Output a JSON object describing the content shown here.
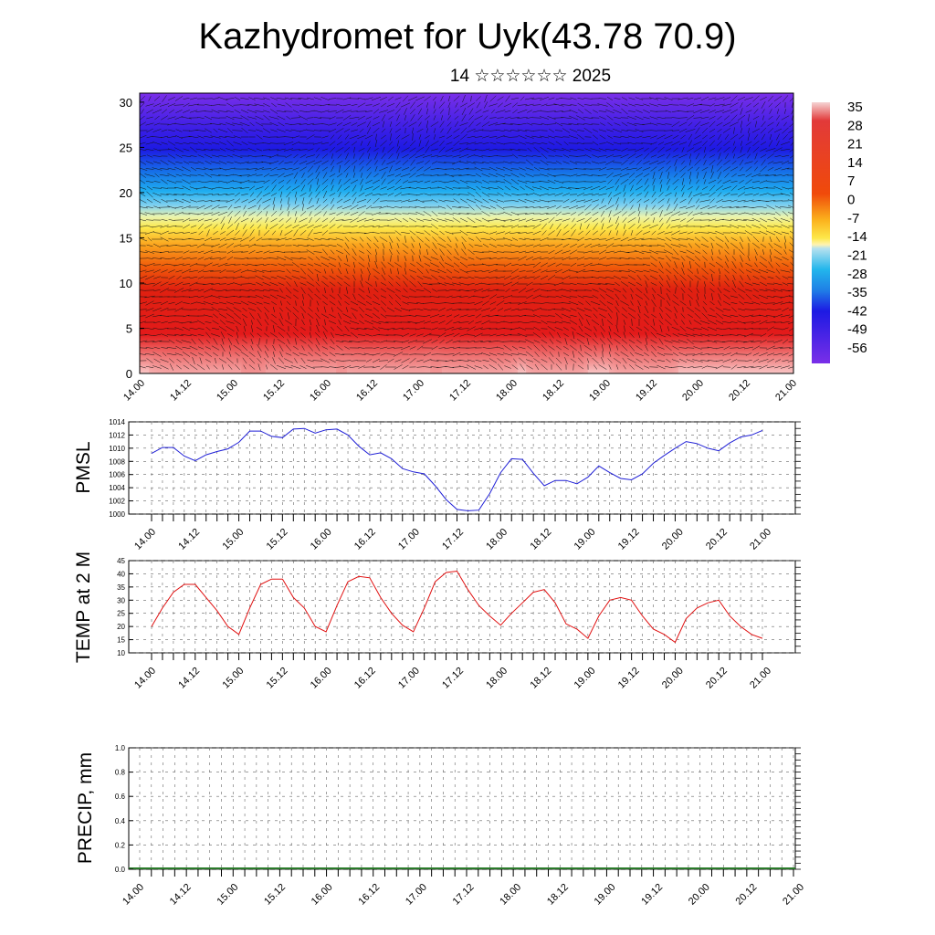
{
  "title": "Kazhydromet for Uyk(43.78 70.9)",
  "subtitle": "14 ☆☆☆☆☆☆ 2025",
  "time_labels": [
    "14.00",
    "14.12",
    "15.00",
    "15.12",
    "16.00",
    "16.12",
    "17.00",
    "17.12",
    "18.00",
    "18.12",
    "19.00",
    "19.12",
    "20.00",
    "20.12",
    "21.00"
  ],
  "colors": {
    "pmsl_line": "#1f1fd6",
    "temp_line": "#e01010",
    "grid": "#555555",
    "axis": "#000000"
  },
  "chart_data": [
    {
      "type": "heatmap",
      "title": "",
      "xlabel": "",
      "ylabel": "",
      "x_ticks": [
        "14.00",
        "14.12",
        "15.00",
        "15.12",
        "16.00",
        "16.12",
        "17.00",
        "17.12",
        "18.00",
        "18.12",
        "19.00",
        "19.12",
        "20.00",
        "20.12",
        "21.00"
      ],
      "y_ticks": [
        0,
        5,
        10,
        15,
        20,
        25,
        30
      ],
      "ylim": [
        0,
        31
      ],
      "colorbar": {
        "labels": [
          "35",
          "28",
          "21",
          "14",
          "7",
          "0",
          "-7",
          "-14",
          "-21",
          "-28",
          "-35",
          "-42",
          "-49",
          "-56"
        ],
        "colors": [
          "#f2c0c0",
          "#e23a3a",
          "#e31a1a",
          "#f04a0a",
          "#f57f0a",
          "#fbb11c",
          "#fde84a",
          "#b6e1ef",
          "#22b6ec",
          "#1f7fe6",
          "#1550e6",
          "#1d1ae3",
          "#4a1ae6",
          "#7a2fe8"
        ]
      },
      "wind_vectors": true
    },
    {
      "type": "line",
      "ylabel": "PMSL",
      "ylim": [
        1000,
        1014
      ],
      "y_ticks": [
        1000,
        1002,
        1004,
        1006,
        1008,
        1010,
        1012,
        1014
      ],
      "x_ticks": [
        "14.00",
        "14.12",
        "15.00",
        "15.12",
        "16.00",
        "16.12",
        "17.00",
        "17.12",
        "18.00",
        "18.12",
        "19.00",
        "19.12",
        "20.00",
        "20.12",
        "21.00"
      ],
      "series": [
        {
          "values": [
            1009.2,
            1010.1,
            1010.1,
            1008.8,
            1008.1,
            1009.0,
            1009.5,
            1009.9,
            1010.9,
            1012.6,
            1012.6,
            1011.8,
            1011.6,
            1012.9,
            1013.0,
            1012.3,
            1012.8,
            1012.9,
            1012.0,
            1010.3,
            1009.0,
            1009.3,
            1008.4,
            1006.9,
            1006.4,
            1006.1,
            1004.3,
            1002.2,
            1000.7,
            1000.5,
            1000.6,
            1003.1,
            1006.3,
            1008.4,
            1008.3,
            1006.2,
            1004.3,
            1005.1,
            1005.1,
            1004.6,
            1005.6,
            1007.3,
            1006.3,
            1005.4,
            1005.2,
            1006.1,
            1007.7,
            1008.9,
            1010.0,
            1011.0,
            1010.7,
            1010.0,
            1009.6,
            1010.8,
            1011.7,
            1012.0,
            1012.7
          ]
        }
      ]
    },
    {
      "type": "line",
      "ylabel": "TEMP at 2 M",
      "ylim": [
        10,
        45
      ],
      "y_ticks": [
        10,
        15,
        20,
        25,
        30,
        35,
        40,
        45
      ],
      "x_ticks": [
        "14.00",
        "14.12",
        "15.00",
        "15.12",
        "16.00",
        "16.12",
        "17.00",
        "17.12",
        "18.00",
        "18.12",
        "19.00",
        "19.12",
        "20.00",
        "20.12",
        "21.00"
      ],
      "series": [
        {
          "values": [
            20,
            27,
            33,
            36,
            36,
            31,
            26,
            20,
            17,
            27,
            36,
            38,
            38,
            31,
            27,
            20,
            18,
            28,
            37,
            39,
            38.5,
            31,
            25,
            20.5,
            18,
            27,
            37,
            40.5,
            41,
            34,
            28,
            24,
            20.5,
            25,
            29,
            33,
            34,
            29,
            21,
            19,
            15.5,
            24,
            30,
            31,
            30,
            24,
            19,
            17,
            14,
            23,
            27,
            29,
            30,
            24,
            20,
            17,
            15.5
          ]
        }
      ]
    },
    {
      "type": "bar",
      "ylabel": "PRECIP, mm",
      "ylim": [
        0,
        1.0
      ],
      "y_ticks": [
        "0.0",
        "0.2",
        "0.4",
        "0.6",
        "0.8",
        "1.0"
      ],
      "x_ticks": [
        "14.00",
        "14.12",
        "15.00",
        "15.12",
        "16.00",
        "16.12",
        "17.00",
        "17.12",
        "18.00",
        "18.12",
        "19.00",
        "19.12",
        "20.00",
        "20.12",
        "21.00"
      ],
      "values": []
    }
  ]
}
